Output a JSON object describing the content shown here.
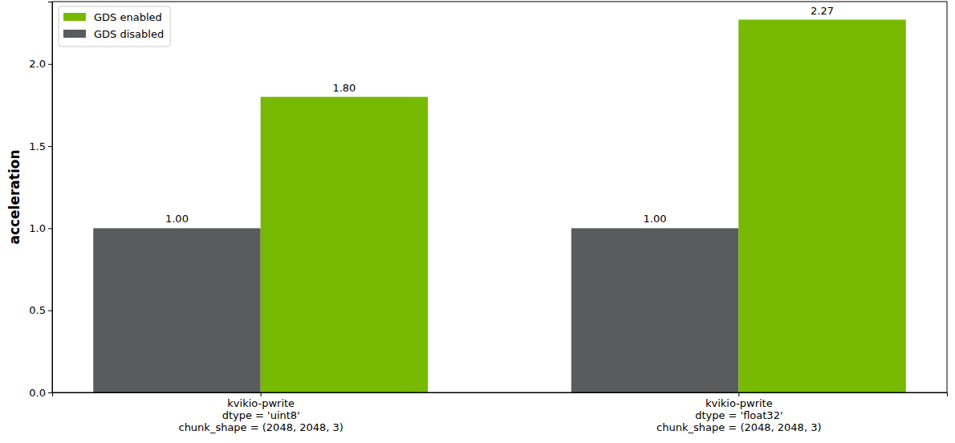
{
  "chart_data": {
    "type": "bar",
    "y_label": "acceleration",
    "categories": [
      "kvikio-pwrite\ndtype = 'uint8'\nchunk_shape = (2048, 2048, 3)",
      "kvikio-pwrite\ndtype = 'float32'\nchunk_shape = (2048, 2048, 3)"
    ],
    "series": [
      {
        "name": "GDS disabled",
        "color": "#5a5b5d",
        "values": [
          1.0,
          1.0
        ],
        "value_labels": [
          "1.00",
          "1.00"
        ]
      },
      {
        "name": "GDS enabled",
        "color": "#76b900",
        "values": [
          1.8,
          2.27
        ],
        "value_labels": [
          "1.80",
          "2.27"
        ]
      }
    ],
    "ylim": [
      0,
      2.38
    ],
    "yticks": [
      {
        "value": 0,
        "label": "0.0"
      },
      0.5,
      {
        "value": 1,
        "label": "1.0"
      },
      1.5,
      {
        "value": 2,
        "label": "2.0"
      }
    ],
    "grid": false,
    "legend": "upper left",
    "data_labels": true
  }
}
